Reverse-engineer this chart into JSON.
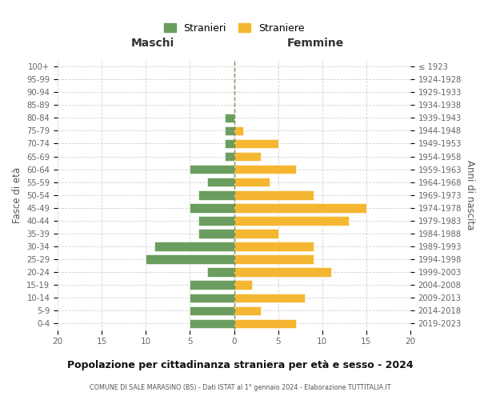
{
  "age_groups": [
    "0-4",
    "5-9",
    "10-14",
    "15-19",
    "20-24",
    "25-29",
    "30-34",
    "35-39",
    "40-44",
    "45-49",
    "50-54",
    "55-59",
    "60-64",
    "65-69",
    "70-74",
    "75-79",
    "80-84",
    "85-89",
    "90-94",
    "95-99",
    "100+"
  ],
  "birth_years": [
    "2019-2023",
    "2014-2018",
    "2009-2013",
    "2004-2008",
    "1999-2003",
    "1994-1998",
    "1989-1993",
    "1984-1988",
    "1979-1983",
    "1974-1978",
    "1969-1973",
    "1964-1968",
    "1959-1963",
    "1954-1958",
    "1949-1953",
    "1944-1948",
    "1939-1943",
    "1934-1938",
    "1929-1933",
    "1924-1928",
    "≤ 1923"
  ],
  "maschi": [
    5,
    5,
    5,
    5,
    3,
    10,
    9,
    4,
    4,
    5,
    4,
    3,
    5,
    1,
    1,
    1,
    1,
    0,
    0,
    0,
    0
  ],
  "femmine": [
    7,
    3,
    8,
    2,
    11,
    9,
    9,
    5,
    13,
    15,
    9,
    4,
    7,
    3,
    5,
    1,
    0,
    0,
    0,
    0,
    0
  ],
  "color_maschi": "#6b9e5e",
  "color_femmine": "#f5b731",
  "title": "Popolazione per cittadinanza straniera per età e sesso - 2024",
  "subtitle": "COMUNE DI SALE MARASINO (BS) - Dati ISTAT al 1° gennaio 2024 - Elaborazione TUTTITALIA.IT",
  "xlabel_left": "Maschi",
  "xlabel_right": "Femmine",
  "ylabel_left": "Fasce di età",
  "ylabel_right": "Anni di nascita",
  "legend_maschi": "Stranieri",
  "legend_femmine": "Straniere",
  "xlim": 20,
  "background_color": "#ffffff",
  "grid_color": "#cccccc"
}
